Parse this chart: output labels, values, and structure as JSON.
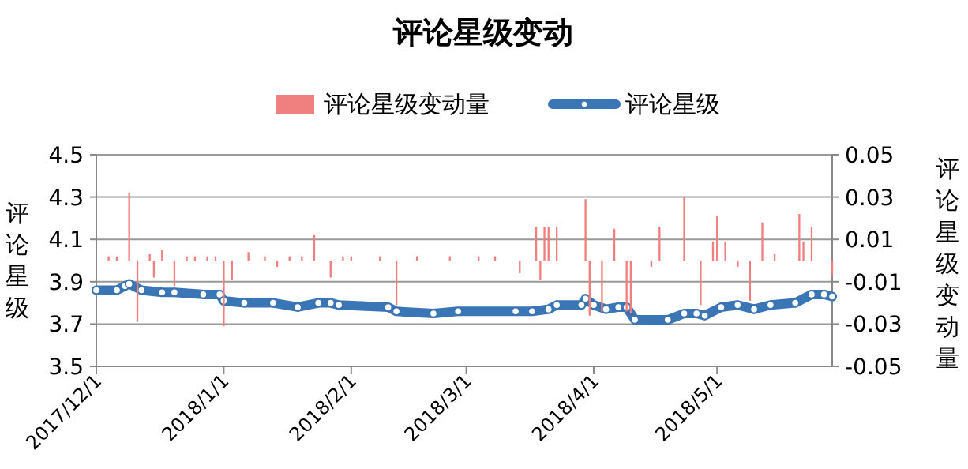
{
  "chart_data": {
    "type": "line",
    "title": "评论星级变动",
    "ylabel": "评论星级",
    "y2label": "评论星级变动量",
    "legend": "top",
    "grid": "y",
    "xlim": [
      "2017-12-01",
      "2018-05-29"
    ],
    "xticks": [
      {
        "value": "2017-12-01",
        "label": "2017/12/1"
      },
      {
        "value": "2018-01-01",
        "label": "2018/1/1"
      },
      {
        "value": "2018-02-01",
        "label": "2018/2/1"
      },
      {
        "value": "2018-03-01",
        "label": "2018/3/1"
      },
      {
        "value": "2018-04-01",
        "label": "2018/4/1"
      },
      {
        "value": "2018-05-01",
        "label": "2018/5/1"
      }
    ],
    "ylim": [
      3.5,
      4.5
    ],
    "yticks": [
      3.5,
      3.7,
      3.9,
      4.1,
      4.3,
      4.5
    ],
    "y2lim": [
      -0.05,
      0.05
    ],
    "y2ticks": [
      -0.05,
      -0.03,
      -0.01,
      0.01,
      0.03,
      0.05
    ],
    "series": [
      {
        "name": "评论星级变动量",
        "type": "bar",
        "axis": "y2",
        "color": "#f08080",
        "x": [
          "2017-12-04",
          "2017-12-06",
          "2017-12-09",
          "2017-12-11",
          "2017-12-14",
          "2017-12-15",
          "2017-12-17",
          "2017-12-20",
          "2017-12-23",
          "2017-12-25",
          "2017-12-28",
          "2017-12-30",
          "2018-01-01",
          "2018-01-03",
          "2018-01-07",
          "2018-01-11",
          "2018-01-14",
          "2018-01-17",
          "2018-01-20",
          "2018-01-23",
          "2018-01-27",
          "2018-01-30",
          "2018-02-01",
          "2018-02-08",
          "2018-02-12",
          "2018-02-17",
          "2018-02-25",
          "2018-03-04",
          "2018-03-08",
          "2018-03-14",
          "2018-03-18",
          "2018-03-19",
          "2018-03-20",
          "2018-03-21",
          "2018-03-23",
          "2018-03-30",
          "2018-03-31",
          "2018-04-03",
          "2018-04-06",
          "2018-04-09",
          "2018-04-10",
          "2018-04-15",
          "2018-04-17",
          "2018-04-23",
          "2018-04-27",
          "2018-04-30",
          "2018-05-01",
          "2018-05-03",
          "2018-05-06",
          "2018-05-09",
          "2018-05-12",
          "2018-05-15",
          "2018-05-21",
          "2018-05-22",
          "2018-05-24",
          "2018-05-29"
        ],
        "values": [
          0.002,
          0.002,
          0.032,
          -0.029,
          0.003,
          -0.008,
          0.005,
          -0.012,
          0.002,
          0.002,
          0.002,
          0.002,
          -0.031,
          -0.009,
          0.004,
          0.002,
          -0.003,
          0.002,
          0.002,
          0.012,
          -0.008,
          0.002,
          0.002,
          0.002,
          -0.021,
          0.002,
          0.002,
          0.002,
          0.002,
          -0.006,
          0.016,
          -0.009,
          0.016,
          0.016,
          0.016,
          0.029,
          -0.026,
          -0.024,
          0.015,
          -0.024,
          -0.025,
          -0.003,
          0.016,
          0.03,
          -0.021,
          0.009,
          0.021,
          0.009,
          -0.003,
          -0.019,
          0.018,
          0.003,
          0.022,
          0.009,
          0.016,
          -0.007
        ]
      },
      {
        "name": "评论星级",
        "color": "#3a75b5",
        "marker": "circle",
        "x": [
          "2017-12-01",
          "2017-12-06",
          "2017-12-08",
          "2017-12-09",
          "2017-12-12",
          "2017-12-17",
          "2017-12-20",
          "2017-12-27",
          "2017-12-31",
          "2018-01-01",
          "2018-01-06",
          "2018-01-13",
          "2018-01-19",
          "2018-01-24",
          "2018-01-27",
          "2018-01-29",
          "2018-02-10",
          "2018-02-12",
          "2018-02-21",
          "2018-02-27",
          "2018-03-13",
          "2018-03-17",
          "2018-03-21",
          "2018-03-23",
          "2018-03-29",
          "2018-03-30",
          "2018-04-01",
          "2018-04-04",
          "2018-04-07",
          "2018-04-09",
          "2018-04-11",
          "2018-04-19",
          "2018-04-23",
          "2018-04-26",
          "2018-04-28",
          "2018-05-02",
          "2018-05-06",
          "2018-05-10",
          "2018-05-14",
          "2018-05-20",
          "2018-05-24",
          "2018-05-27",
          "2018-05-29"
        ],
        "values": [
          3.86,
          3.86,
          3.88,
          3.89,
          3.86,
          3.85,
          3.85,
          3.84,
          3.84,
          3.81,
          3.8,
          3.8,
          3.78,
          3.8,
          3.8,
          3.79,
          3.78,
          3.76,
          3.75,
          3.76,
          3.76,
          3.76,
          3.77,
          3.79,
          3.79,
          3.82,
          3.79,
          3.77,
          3.78,
          3.78,
          3.72,
          3.72,
          3.75,
          3.75,
          3.74,
          3.78,
          3.79,
          3.77,
          3.79,
          3.8,
          3.84,
          3.84,
          3.83
        ]
      }
    ]
  }
}
